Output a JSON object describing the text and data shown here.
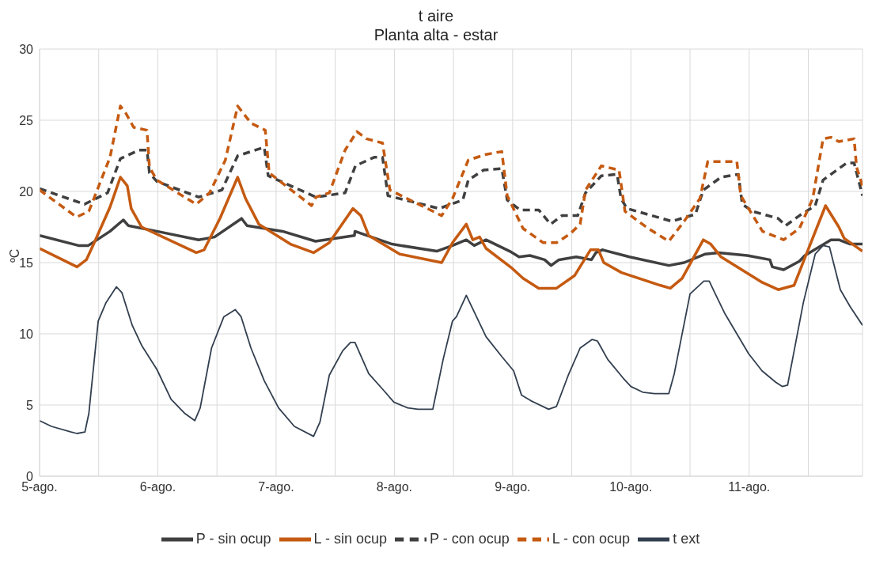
{
  "chart_data": {
    "type": "line",
    "title": "t aire",
    "subtitle": "Planta alta - estar",
    "ylabel": "ºC",
    "xlim": [
      "--08-05",
      "--08-11T23:00"
    ],
    "xticks": [
      {
        "value": "--08-05",
        "label": "5-ago."
      },
      {
        "value": "--08-05T12:00",
        "label": null
      },
      {
        "value": "--08-06",
        "label": "6-ago."
      },
      {
        "value": "--08-06T12:00",
        "label": null
      },
      {
        "value": "--08-07",
        "label": "7-ago."
      },
      {
        "value": "--08-07T12:00",
        "label": null
      },
      {
        "value": "--08-08",
        "label": "8-ago."
      },
      {
        "value": "--08-08T12:00",
        "label": null
      },
      {
        "value": "--08-09",
        "label": "9-ago."
      },
      {
        "value": "--08-09T12:00",
        "label": null
      },
      {
        "value": "--08-10",
        "label": "10-ago."
      },
      {
        "value": "--08-10T12:00",
        "label": null
      },
      {
        "value": "--08-11",
        "label": "11-ago."
      },
      {
        "value": "--08-11T12:00",
        "label": null
      }
    ],
    "ylim": [
      0,
      30
    ],
    "yticks": [
      0,
      5,
      10,
      15,
      20,
      25,
      30
    ],
    "grid": true,
    "legend": "bottom",
    "series": [
      {
        "name": "P - sin ocup",
        "color": "#404040",
        "line_style": "solid",
        "x": [
          "--08-05T00:00",
          "--08-05T07:54",
          "--08-05T09:54",
          "--08-05T14:18",
          "--08-05T17:00",
          "--08-05T18:00",
          "--08-05T23:48",
          "--08-06T08:18",
          "--08-06T11:30",
          "--08-06T17:00",
          "--08-06T18:06",
          "--08-07T01:18",
          "--08-07T08:00",
          "--08-07T15:54",
          "--08-07T16:00",
          "--08-07T23:30",
          "--08-08T08:36",
          "--08-08T11:48",
          "--08-08T14:36",
          "--08-08T16:12",
          "--08-08T18:36",
          "--08-08T23:24",
          "--08-09T01:18",
          "--08-09T03:30",
          "--08-09T06:30",
          "--08-09T07:48",
          "--08-09T09:24",
          "--08-09T12:54",
          "--08-09T16:00",
          "--08-09T16:54",
          "--08-09T18:12",
          "--08-09T23:42",
          "--08-10T07:42",
          "--08-10T10:48",
          "--08-10T15:06",
          "--08-10T17:48",
          "--08-10T23:36",
          "--08-11T04:12",
          "--08-11T04:42",
          "--08-11T07:00",
          "--08-11T10:12",
          "--08-11T11:18",
          "--08-11T16:36",
          "--08-11T18:12",
          "--08-11T20:30",
          "--08-11T23:00"
        ],
        "values": [
          16.9,
          16.2,
          16.2,
          17.2,
          18.0,
          17.6,
          17.2,
          16.6,
          16.8,
          18.1,
          17.6,
          17.2,
          16.5,
          16.9,
          17.2,
          16.3,
          15.8,
          16.2,
          16.6,
          16.2,
          16.6,
          15.8,
          15.4,
          15.5,
          15.2,
          14.8,
          15.2,
          15.4,
          15.2,
          15.7,
          15.9,
          15.4,
          14.8,
          15.0,
          15.6,
          15.7,
          15.5,
          15.2,
          14.7,
          14.5,
          15.1,
          15.5,
          16.6,
          16.6,
          16.3,
          16.3
        ]
      },
      {
        "name": "L - sin ocup",
        "color": "#c55a11",
        "line_style": "solid",
        "x": [
          "--08-05T00:00",
          "--08-05T07:36",
          "--08-05T09:30",
          "--08-05T11:06",
          "--08-05T14:18",
          "--08-05T16:24",
          "--08-05T17:48",
          "--08-05T18:36",
          "--08-05T20:42",
          "--08-06T07:48",
          "--08-06T09:24",
          "--08-06T12:36",
          "--08-06T16:12",
          "--08-06T17:48",
          "--08-06T20:30",
          "--08-07T02:54",
          "--08-07T07:36",
          "--08-07T10:48",
          "--08-07T15:36",
          "--08-07T17:12",
          "--08-07T18:48",
          "--08-08T01:06",
          "--08-08T09:36",
          "--08-08T11:48",
          "--08-08T14:36",
          "--08-08T15:54",
          "--08-08T17:18",
          "--08-08T18:36",
          "--08-08T23:54",
          "--08-09T02:06",
          "--08-09T05:18",
          "--08-09T08:54",
          "--08-09T12:36",
          "--08-09T15:48",
          "--08-09T17:24",
          "--08-09T18:30",
          "--08-09T22:06",
          "--08-10T06:00",
          "--08-10T08:00",
          "--08-10T10:24",
          "--08-10T14:42",
          "--08-10T16:12",
          "--08-10T18:18",
          "--08-11T02:42",
          "--08-11T05:54",
          "--08-11T09:06",
          "--08-11T15:30",
          "--08-11T18:12",
          "--08-11T19:18",
          "--08-11T23:00"
        ],
        "values": [
          16.0,
          14.7,
          15.2,
          16.4,
          18.9,
          21.0,
          20.4,
          18.8,
          17.5,
          15.7,
          15.9,
          18.1,
          21.0,
          19.5,
          17.7,
          16.3,
          15.7,
          16.4,
          18.8,
          18.3,
          16.9,
          15.6,
          15.0,
          16.4,
          17.7,
          16.6,
          16.8,
          16.0,
          14.6,
          13.9,
          13.2,
          13.2,
          14.1,
          15.9,
          15.9,
          15.0,
          14.3,
          13.4,
          13.2,
          13.9,
          16.6,
          16.3,
          15.4,
          13.6,
          13.1,
          13.4,
          19.0,
          17.5,
          16.7,
          15.8
        ]
      },
      {
        "name": "P - con ocup",
        "color": "#404040",
        "line_style": "dashed",
        "x": [
          "--08-05T00:00",
          "--08-05T09:06",
          "--08-05T13:48",
          "--08-05T16:24",
          "--08-05T20:12",
          "--08-05T21:48",
          "--08-05T22:18",
          "--08-05T23:48",
          "--08-06T08:18",
          "--08-06T13:00",
          "--08-06T16:12",
          "--08-06T21:36",
          "--08-06T22:24",
          "--08-07T08:06",
          "--08-07T14:00",
          "--08-07T16:06",
          "--08-07T19:54",
          "--08-07T21:36",
          "--08-07T22:42",
          "--08-08T09:06",
          "--08-08T13:54",
          "--08-08T15:00",
          "--08-08T18:06",
          "--08-08T21:48",
          "--08-08T22:54",
          "--08-09T01:30",
          "--08-09T05:18",
          "--08-09T07:42",
          "--08-09T10:00",
          "--08-09T13:12",
          "--08-09T14:48",
          "--08-09T18:00",
          "--08-09T21:12",
          "--08-09T22:00",
          "--08-09T23:12",
          "--08-10T08:18",
          "--08-10T13:06",
          "--08-10T14:42",
          "--08-10T18:18",
          "--08-10T21:48",
          "--08-10T22:36",
          "--08-11T00:42",
          "--08-11T05:54",
          "--08-11T07:24",
          "--08-11T10:12",
          "--08-11T13:24",
          "--08-11T15:00",
          "--08-11T19:48",
          "--08-11T21:18",
          "--08-11T23:00"
        ],
        "values": [
          20.2,
          19.1,
          19.9,
          22.3,
          22.9,
          22.9,
          21.3,
          20.7,
          19.6,
          20.1,
          22.5,
          23.1,
          21.1,
          19.6,
          19.9,
          21.8,
          22.4,
          22.4,
          19.7,
          18.8,
          19.4,
          20.8,
          21.5,
          21.6,
          19.4,
          18.7,
          18.7,
          17.7,
          18.3,
          18.3,
          19.9,
          21.1,
          21.2,
          19.5,
          18.8,
          17.9,
          18.4,
          20.1,
          21.0,
          21.2,
          19.1,
          18.6,
          18.1,
          17.6,
          18.3,
          19.0,
          20.8,
          22.0,
          22.0,
          19.7
        ]
      },
      {
        "name": "L - con ocup",
        "color": "#c55a11",
        "line_style": "dashed",
        "x": [
          "--08-05T00:00",
          "--08-05T07:30",
          "--08-05T10:00",
          "--08-05T14:18",
          "--08-05T16:24",
          "--08-05T17:30",
          "--08-05T19:06",
          "--08-05T21:48",
          "--08-05T22:18",
          "--08-05T23:48",
          "--08-06T07:48",
          "--08-06T10:30",
          "--08-06T13:42",
          "--08-06T16:12",
          "--08-06T18:54",
          "--08-06T21:48",
          "--08-06T22:36",
          "--08-07T07:12",
          "--08-07T08:06",
          "--08-07T10:48",
          "--08-07T14:00",
          "--08-07T16:24",
          "--08-07T18:18",
          "--08-07T21:36",
          "--08-07T23:06",
          "--08-08T09:36",
          "--08-08T11:48",
          "--08-08T15:00",
          "--08-08T18:36",
          "--08-08T21:48",
          "--08-08T22:54",
          "--08-09T02:06",
          "--08-09T06:12",
          "--08-09T08:54",
          "--08-09T11:36",
          "--08-09T13:42",
          "--08-09T14:48",
          "--08-09T18:00",
          "--08-09T21:36",
          "--08-09T22:48",
          "--08-10T03:30",
          "--08-10T07:42",
          "--08-10T10:48",
          "--08-10T14:00",
          "--08-10T15:36",
          "--08-10T21:30",
          "--08-10T22:18",
          "--08-11T02:42",
          "--08-11T07:00",
          "--08-11T10:12",
          "--08-11T12:54",
          "--08-11T15:00",
          "--08-11T16:36",
          "--08-11T18:12",
          "--08-11T21:18",
          "--08-11T21:48",
          "--08-11T23:00"
        ],
        "values": [
          20.1,
          18.2,
          18.6,
          22.4,
          26.0,
          25.5,
          24.5,
          24.3,
          21.7,
          20.8,
          19.1,
          19.9,
          22.2,
          26.0,
          24.8,
          24.3,
          21.3,
          19.0,
          19.6,
          19.9,
          22.9,
          24.2,
          23.7,
          23.4,
          20.1,
          18.3,
          19.5,
          22.2,
          22.6,
          22.8,
          19.7,
          17.4,
          16.4,
          16.4,
          17.0,
          17.7,
          20.1,
          21.8,
          21.5,
          18.6,
          17.4,
          16.5,
          17.9,
          19.5,
          22.1,
          22.1,
          19.7,
          17.2,
          16.6,
          17.4,
          19.5,
          23.7,
          23.8,
          23.5,
          23.7,
          21.7,
          20.4
        ]
      },
      {
        "name": "t ext",
        "color": "#323f4f",
        "line_style": "solid",
        "x": [
          "--08-05T00:00",
          "--08-05T02:24",
          "--08-05T06:24",
          "--08-05T07:36",
          "--08-05T09:12",
          "--08-05T10:00",
          "--08-05T11:54",
          "--08-05T13:30",
          "--08-05T15:36",
          "--08-05T16:42",
          "--08-05T18:48",
          "--08-05T20:42",
          "--08-05T23:48",
          "--08-06T02:42",
          "--08-06T05:30",
          "--08-06T07:30",
          "--08-06T08:36",
          "--08-06T10:54",
          "--08-06T13:24",
          "--08-06T15:42",
          "--08-06T16:54",
          "--08-06T18:54",
          "--08-06T21:36",
          "--08-07T00:30",
          "--08-07T03:42",
          "--08-07T07:36",
          "--08-07T08:54",
          "--08-07T10:48",
          "--08-07T13:30",
          "--08-07T15:06",
          "--08-07T16:00",
          "--08-07T18:48",
          "--08-07T21:54",
          "--08-07T23:54",
          "--08-08T02:42",
          "--08-08T04:48",
          "--08-08T07:48",
          "--08-08T09:54",
          "--08-08T11:48",
          "--08-08T12:36",
          "--08-08T14:36",
          "--08-08T18:36",
          "--08-08T21:48",
          "--08-09T00:12",
          "--08-09T01:48",
          "--08-09T03:42",
          "--08-09T07:18",
          "--08-09T08:54",
          "--08-09T11:18",
          "--08-09T13:42",
          "--08-09T16:06",
          "--08-09T17:12",
          "--08-09T19:18",
          "--08-09T22:24",
          "--08-10T00:00",
          "--08-10T02:24",
          "--08-10T04:48",
          "--08-10T07:42",
          "--08-10T08:48",
          "--08-10T12:00",
          "--08-10T14:48",
          "--08-10T15:54",
          "--08-10T17:00",
          "--08-10T19:06",
          "--08-10T21:30",
          "--08-10T23:54",
          "--08-11T02:36",
          "--08-11T05:24",
          "--08-11T06:42",
          "--08-11T07:48",
          "--08-11T11:00",
          "--08-11T13:24",
          "--08-11T15:00",
          "--08-11T16:18",
          "--08-11T18:30",
          "--08-11T20:30",
          "--08-11T23:00"
        ],
        "values": [
          3.9,
          3.5,
          3.1,
          3.0,
          3.1,
          4.4,
          10.9,
          12.2,
          13.3,
          12.9,
          10.6,
          9.2,
          7.5,
          5.4,
          4.4,
          3.9,
          4.8,
          9.0,
          11.2,
          11.7,
          11.2,
          9.0,
          6.7,
          4.8,
          3.5,
          2.8,
          3.8,
          7.1,
          8.8,
          9.4,
          9.4,
          7.2,
          6.0,
          5.2,
          4.8,
          4.7,
          4.7,
          8.2,
          10.9,
          11.2,
          12.7,
          9.8,
          8.4,
          7.4,
          5.7,
          5.3,
          4.7,
          4.9,
          7.1,
          9.0,
          9.6,
          9.5,
          8.2,
          6.9,
          6.3,
          5.9,
          5.8,
          5.8,
          7.2,
          12.8,
          13.7,
          13.7,
          12.9,
          11.4,
          10.0,
          8.6,
          7.4,
          6.6,
          6.3,
          6.4,
          12.2,
          15.6,
          16.2,
          16.1,
          13.1,
          11.9,
          10.6
        ]
      }
    ]
  }
}
